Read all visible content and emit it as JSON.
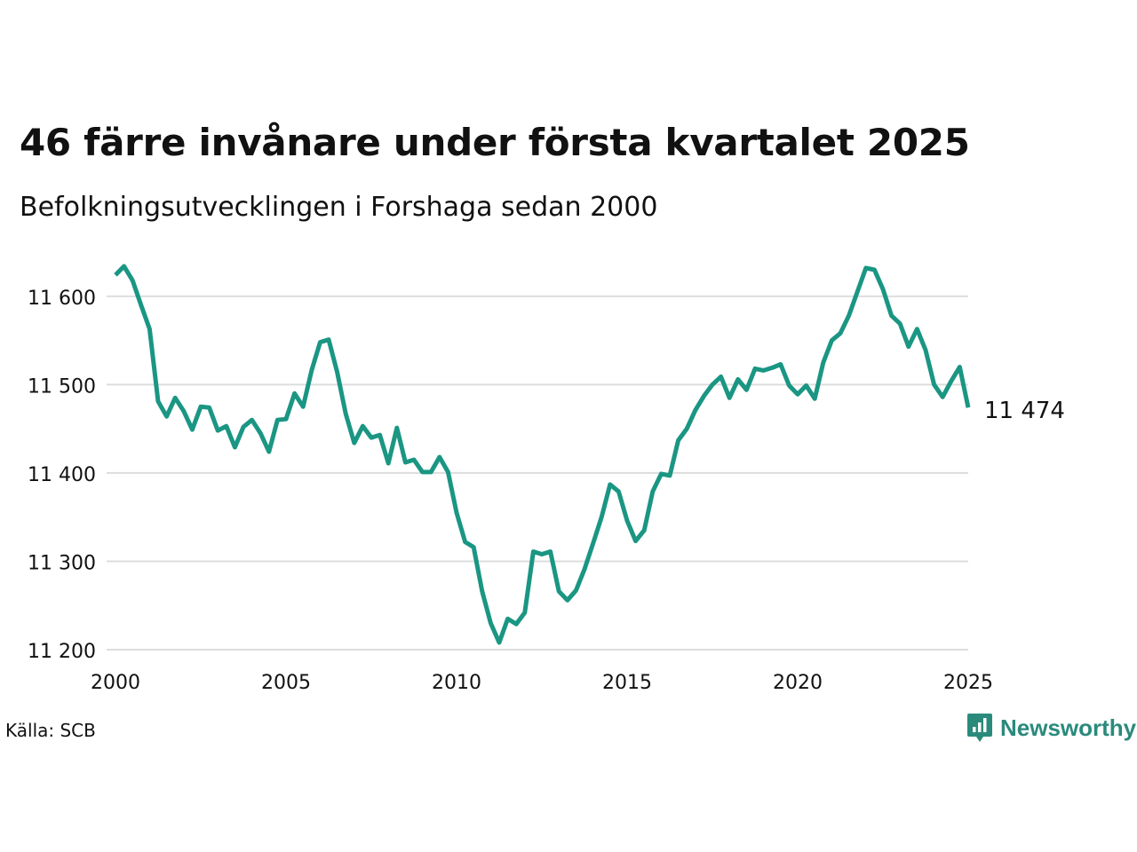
{
  "header": {
    "title": "46 färre invånare under första kvartalet 2025",
    "subtitle": "Befolkningsutvecklingen i Forshaga sedan 2000"
  },
  "footer": {
    "source": "Källa: SCB",
    "brand": "Newsworthy",
    "brand_icon": "chart-bubble-icon"
  },
  "colors": {
    "line": "#1a9683",
    "grid": "#dddddd",
    "brand": "#2a8a7c"
  },
  "chart_data": {
    "type": "line",
    "title": "46 färre invånare under första kvartalet 2025",
    "subtitle": "Befolkningsutvecklingen i Forshaga sedan 2000",
    "xlabel": "",
    "ylabel": "",
    "xlim": [
      2000,
      2025
    ],
    "ylim": [
      11200,
      11640
    ],
    "grid": "horizontal",
    "legend": "none",
    "x_ticks": [
      2000,
      2005,
      2010,
      2015,
      2020,
      2025
    ],
    "x_tick_labels": [
      "2000",
      "2005",
      "2010",
      "2015",
      "2020",
      "2025"
    ],
    "y_ticks": [
      11200,
      11300,
      11400,
      11500,
      11600
    ],
    "y_tick_labels": [
      "11 200",
      "11 300",
      "11 400",
      "11 500",
      "11 600"
    ],
    "end_label": "11 474",
    "series": [
      {
        "values": [
          {
            "x": 2000.0,
            "y": 11624
          },
          {
            "x": 2000.25,
            "y": 11634
          },
          {
            "x": 2000.5,
            "y": 11618
          },
          {
            "x": 2000.75,
            "y": 11590
          },
          {
            "x": 2001.0,
            "y": 11563
          },
          {
            "x": 2001.25,
            "y": 11481
          },
          {
            "x": 2001.5,
            "y": 11464
          },
          {
            "x": 2001.75,
            "y": 11485
          },
          {
            "x": 2002.0,
            "y": 11470
          },
          {
            "x": 2002.25,
            "y": 11449
          },
          {
            "x": 2002.5,
            "y": 11475
          },
          {
            "x": 2002.75,
            "y": 11474
          },
          {
            "x": 2003.0,
            "y": 11448
          },
          {
            "x": 2003.25,
            "y": 11453
          },
          {
            "x": 2003.5,
            "y": 11429
          },
          {
            "x": 2003.75,
            "y": 11452
          },
          {
            "x": 2004.0,
            "y": 11460
          },
          {
            "x": 2004.25,
            "y": 11445
          },
          {
            "x": 2004.5,
            "y": 11424
          },
          {
            "x": 2004.75,
            "y": 11460
          },
          {
            "x": 2005.0,
            "y": 11461
          },
          {
            "x": 2005.25,
            "y": 11490
          },
          {
            "x": 2005.5,
            "y": 11475
          },
          {
            "x": 2005.75,
            "y": 11516
          },
          {
            "x": 2006.0,
            "y": 11548
          },
          {
            "x": 2006.25,
            "y": 11551
          },
          {
            "x": 2006.5,
            "y": 11514
          },
          {
            "x": 2006.75,
            "y": 11467
          },
          {
            "x": 2007.0,
            "y": 11434
          },
          {
            "x": 2007.25,
            "y": 11453
          },
          {
            "x": 2007.5,
            "y": 11440
          },
          {
            "x": 2007.75,
            "y": 11443
          },
          {
            "x": 2008.0,
            "y": 11411
          },
          {
            "x": 2008.25,
            "y": 11451
          },
          {
            "x": 2008.5,
            "y": 11412
          },
          {
            "x": 2008.75,
            "y": 11415
          },
          {
            "x": 2009.0,
            "y": 11401
          },
          {
            "x": 2009.25,
            "y": 11401
          },
          {
            "x": 2009.5,
            "y": 11418
          },
          {
            "x": 2009.75,
            "y": 11401
          },
          {
            "x": 2010.0,
            "y": 11355
          },
          {
            "x": 2010.25,
            "y": 11322
          },
          {
            "x": 2010.5,
            "y": 11316
          },
          {
            "x": 2010.75,
            "y": 11266
          },
          {
            "x": 2011.0,
            "y": 11230
          },
          {
            "x": 2011.25,
            "y": 11208
          },
          {
            "x": 2011.5,
            "y": 11235
          },
          {
            "x": 2011.75,
            "y": 11229
          },
          {
            "x": 2012.0,
            "y": 11242
          },
          {
            "x": 2012.25,
            "y": 11311
          },
          {
            "x": 2012.5,
            "y": 11308
          },
          {
            "x": 2012.75,
            "y": 11311
          },
          {
            "x": 2013.0,
            "y": 11266
          },
          {
            "x": 2013.25,
            "y": 11256
          },
          {
            "x": 2013.5,
            "y": 11267
          },
          {
            "x": 2013.75,
            "y": 11291
          },
          {
            "x": 2014.0,
            "y": 11320
          },
          {
            "x": 2014.25,
            "y": 11350
          },
          {
            "x": 2014.5,
            "y": 11387
          },
          {
            "x": 2014.75,
            "y": 11379
          },
          {
            "x": 2015.0,
            "y": 11346
          },
          {
            "x": 2015.25,
            "y": 11323
          },
          {
            "x": 2015.5,
            "y": 11335
          },
          {
            "x": 2015.75,
            "y": 11379
          },
          {
            "x": 2016.0,
            "y": 11399
          },
          {
            "x": 2016.25,
            "y": 11397
          },
          {
            "x": 2016.5,
            "y": 11437
          },
          {
            "x": 2016.75,
            "y": 11450
          },
          {
            "x": 2017.0,
            "y": 11471
          },
          {
            "x": 2017.25,
            "y": 11487
          },
          {
            "x": 2017.5,
            "y": 11500
          },
          {
            "x": 2017.75,
            "y": 11509
          },
          {
            "x": 2018.0,
            "y": 11485
          },
          {
            "x": 2018.25,
            "y": 11506
          },
          {
            "x": 2018.5,
            "y": 11494
          },
          {
            "x": 2018.75,
            "y": 11518
          },
          {
            "x": 2019.0,
            "y": 11516
          },
          {
            "x": 2019.25,
            "y": 11519
          },
          {
            "x": 2019.5,
            "y": 11523
          },
          {
            "x": 2019.75,
            "y": 11499
          },
          {
            "x": 2020.0,
            "y": 11489
          },
          {
            "x": 2020.25,
            "y": 11499
          },
          {
            "x": 2020.5,
            "y": 11484
          },
          {
            "x": 2020.75,
            "y": 11525
          },
          {
            "x": 2021.0,
            "y": 11550
          },
          {
            "x": 2021.25,
            "y": 11558
          },
          {
            "x": 2021.5,
            "y": 11578
          },
          {
            "x": 2021.75,
            "y": 11605
          },
          {
            "x": 2022.0,
            "y": 11632
          },
          {
            "x": 2022.25,
            "y": 11630
          },
          {
            "x": 2022.5,
            "y": 11608
          },
          {
            "x": 2022.75,
            "y": 11578
          },
          {
            "x": 2023.0,
            "y": 11569
          },
          {
            "x": 2023.25,
            "y": 11543
          },
          {
            "x": 2023.5,
            "y": 11563
          },
          {
            "x": 2023.75,
            "y": 11539
          },
          {
            "x": 2024.0,
            "y": 11500
          },
          {
            "x": 2024.25,
            "y": 11486
          },
          {
            "x": 2024.5,
            "y": 11504
          },
          {
            "x": 2024.75,
            "y": 11520
          },
          {
            "x": 2025.0,
            "y": 11474
          }
        ]
      }
    ]
  }
}
